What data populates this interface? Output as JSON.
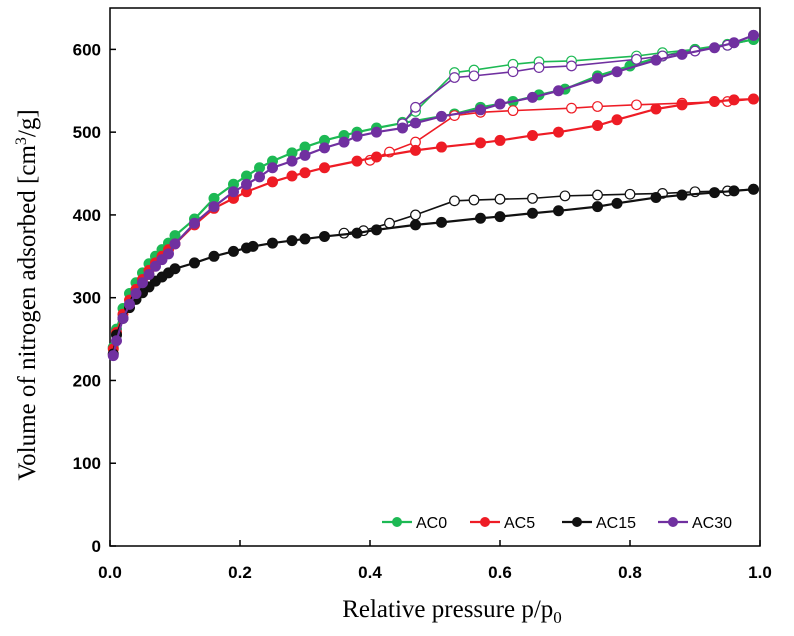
{
  "chart_data": {
    "type": "line",
    "title": "",
    "xlabel": "Relative pressure p/p",
    "xlabel_sub": "0",
    "ylabel": "Volume of nitrogen adsorbed [cm",
    "ylabel_sup": "3",
    "ylabel_end": "/g]",
    "xlim": [
      0,
      1.0
    ],
    "ylim": [
      0,
      650
    ],
    "x_ticks": [
      "0.0",
      "0.2",
      "0.4",
      "0.6",
      "0.8",
      "1.0"
    ],
    "y_ticks": [
      "0",
      "100",
      "200",
      "300",
      "400",
      "500",
      "600"
    ],
    "grid": false,
    "legend_position": "bottom-right",
    "series": [
      {
        "name": "AC0",
        "color": "#1db954",
        "adsorption": [
          [
            0.005,
            240
          ],
          [
            0.01,
            262
          ],
          [
            0.02,
            287
          ],
          [
            0.03,
            305
          ],
          [
            0.04,
            318
          ],
          [
            0.05,
            330
          ],
          [
            0.06,
            341
          ],
          [
            0.07,
            350
          ],
          [
            0.08,
            358
          ],
          [
            0.09,
            366
          ],
          [
            0.1,
            375
          ],
          [
            0.13,
            395
          ],
          [
            0.16,
            420
          ],
          [
            0.19,
            437
          ],
          [
            0.21,
            447
          ],
          [
            0.23,
            457
          ],
          [
            0.25,
            465
          ],
          [
            0.28,
            475
          ],
          [
            0.3,
            482
          ],
          [
            0.33,
            490
          ],
          [
            0.36,
            496
          ],
          [
            0.38,
            500
          ],
          [
            0.41,
            505
          ],
          [
            0.45,
            511
          ],
          [
            0.53,
            522
          ],
          [
            0.57,
            530
          ],
          [
            0.62,
            537
          ],
          [
            0.66,
            545
          ],
          [
            0.7,
            552
          ],
          [
            0.75,
            568
          ],
          [
            0.8,
            580
          ],
          [
            0.85,
            592
          ],
          [
            0.9,
            600
          ],
          [
            0.95,
            606
          ],
          [
            0.99,
            612
          ]
        ],
        "desorption": [
          [
            0.99,
            612
          ],
          [
            0.95,
            605
          ],
          [
            0.9,
            600
          ],
          [
            0.85,
            596
          ],
          [
            0.81,
            592
          ],
          [
            0.71,
            586
          ],
          [
            0.66,
            585
          ],
          [
            0.62,
            582
          ],
          [
            0.56,
            575
          ],
          [
            0.53,
            572
          ],
          [
            0.47,
            525
          ],
          [
            0.45,
            512
          ]
        ]
      },
      {
        "name": "AC5",
        "color": "#ee1c25",
        "adsorption": [
          [
            0.005,
            238
          ],
          [
            0.01,
            258
          ],
          [
            0.02,
            280
          ],
          [
            0.03,
            297
          ],
          [
            0.04,
            310
          ],
          [
            0.05,
            322
          ],
          [
            0.06,
            333
          ],
          [
            0.07,
            342
          ],
          [
            0.08,
            350
          ],
          [
            0.09,
            358
          ],
          [
            0.1,
            365
          ],
          [
            0.13,
            388
          ],
          [
            0.16,
            408
          ],
          [
            0.19,
            420
          ],
          [
            0.21,
            428
          ],
          [
            0.25,
            440
          ],
          [
            0.28,
            447
          ],
          [
            0.3,
            451
          ],
          [
            0.33,
            457
          ],
          [
            0.38,
            465
          ],
          [
            0.41,
            470
          ],
          [
            0.47,
            478
          ],
          [
            0.51,
            482
          ],
          [
            0.57,
            487
          ],
          [
            0.6,
            490
          ],
          [
            0.65,
            496
          ],
          [
            0.69,
            500
          ],
          [
            0.75,
            508
          ],
          [
            0.78,
            515
          ],
          [
            0.84,
            528
          ],
          [
            0.88,
            533
          ],
          [
            0.93,
            537
          ],
          [
            0.96,
            539
          ],
          [
            0.99,
            540
          ]
        ],
        "desorption": [
          [
            0.99,
            540
          ],
          [
            0.95,
            537
          ],
          [
            0.88,
            535
          ],
          [
            0.81,
            533
          ],
          [
            0.75,
            531
          ],
          [
            0.71,
            529
          ],
          [
            0.62,
            526
          ],
          [
            0.57,
            524
          ],
          [
            0.53,
            520
          ],
          [
            0.47,
            488
          ],
          [
            0.43,
            476
          ],
          [
            0.4,
            466
          ]
        ]
      },
      {
        "name": "AC15",
        "color": "#111111",
        "adsorption": [
          [
            0.005,
            232
          ],
          [
            0.01,
            255
          ],
          [
            0.02,
            275
          ],
          [
            0.03,
            288
          ],
          [
            0.04,
            298
          ],
          [
            0.05,
            306
          ],
          [
            0.06,
            313
          ],
          [
            0.07,
            320
          ],
          [
            0.08,
            325
          ],
          [
            0.09,
            330
          ],
          [
            0.1,
            335
          ],
          [
            0.13,
            342
          ],
          [
            0.16,
            350
          ],
          [
            0.19,
            356
          ],
          [
            0.21,
            360
          ],
          [
            0.22,
            362
          ],
          [
            0.25,
            366
          ],
          [
            0.28,
            369
          ],
          [
            0.3,
            371
          ],
          [
            0.33,
            374
          ],
          [
            0.38,
            378
          ],
          [
            0.41,
            382
          ],
          [
            0.47,
            388
          ],
          [
            0.51,
            391
          ],
          [
            0.57,
            396
          ],
          [
            0.6,
            398
          ],
          [
            0.65,
            402
          ],
          [
            0.69,
            405
          ],
          [
            0.75,
            410
          ],
          [
            0.78,
            414
          ],
          [
            0.84,
            421
          ],
          [
            0.88,
            424
          ],
          [
            0.93,
            427
          ],
          [
            0.96,
            429
          ],
          [
            0.99,
            431
          ]
        ],
        "desorption": [
          [
            0.99,
            431
          ],
          [
            0.95,
            429
          ],
          [
            0.9,
            428
          ],
          [
            0.85,
            426
          ],
          [
            0.8,
            425
          ],
          [
            0.75,
            424
          ],
          [
            0.7,
            423
          ],
          [
            0.65,
            420
          ],
          [
            0.6,
            419
          ],
          [
            0.56,
            418
          ],
          [
            0.53,
            417
          ],
          [
            0.47,
            400
          ],
          [
            0.43,
            390
          ],
          [
            0.39,
            381
          ],
          [
            0.36,
            378
          ]
        ]
      },
      {
        "name": "AC30",
        "color": "#7030a0",
        "adsorption": [
          [
            0.005,
            230
          ],
          [
            0.01,
            248
          ],
          [
            0.02,
            275
          ],
          [
            0.03,
            292
          ],
          [
            0.04,
            305
          ],
          [
            0.05,
            318
          ],
          [
            0.06,
            328
          ],
          [
            0.07,
            338
          ],
          [
            0.08,
            346
          ],
          [
            0.09,
            353
          ],
          [
            0.1,
            365
          ],
          [
            0.13,
            390
          ],
          [
            0.16,
            410
          ],
          [
            0.19,
            428
          ],
          [
            0.21,
            437
          ],
          [
            0.23,
            446
          ],
          [
            0.25,
            457
          ],
          [
            0.28,
            465
          ],
          [
            0.3,
            472
          ],
          [
            0.33,
            481
          ],
          [
            0.36,
            488
          ],
          [
            0.38,
            495
          ],
          [
            0.41,
            500
          ],
          [
            0.45,
            505
          ],
          [
            0.47,
            511
          ],
          [
            0.51,
            519
          ],
          [
            0.57,
            527
          ],
          [
            0.6,
            534
          ],
          [
            0.65,
            542
          ],
          [
            0.69,
            550
          ],
          [
            0.75,
            565
          ],
          [
            0.78,
            573
          ],
          [
            0.84,
            587
          ],
          [
            0.88,
            594
          ],
          [
            0.93,
            602
          ],
          [
            0.96,
            608
          ],
          [
            0.99,
            617
          ]
        ],
        "desorption": [
          [
            0.99,
            617
          ],
          [
            0.95,
            605
          ],
          [
            0.9,
            598
          ],
          [
            0.85,
            592
          ],
          [
            0.81,
            588
          ],
          [
            0.71,
            580
          ],
          [
            0.66,
            578
          ],
          [
            0.62,
            573
          ],
          [
            0.56,
            568
          ],
          [
            0.53,
            566
          ],
          [
            0.47,
            530
          ],
          [
            0.45,
            510
          ]
        ]
      }
    ]
  }
}
